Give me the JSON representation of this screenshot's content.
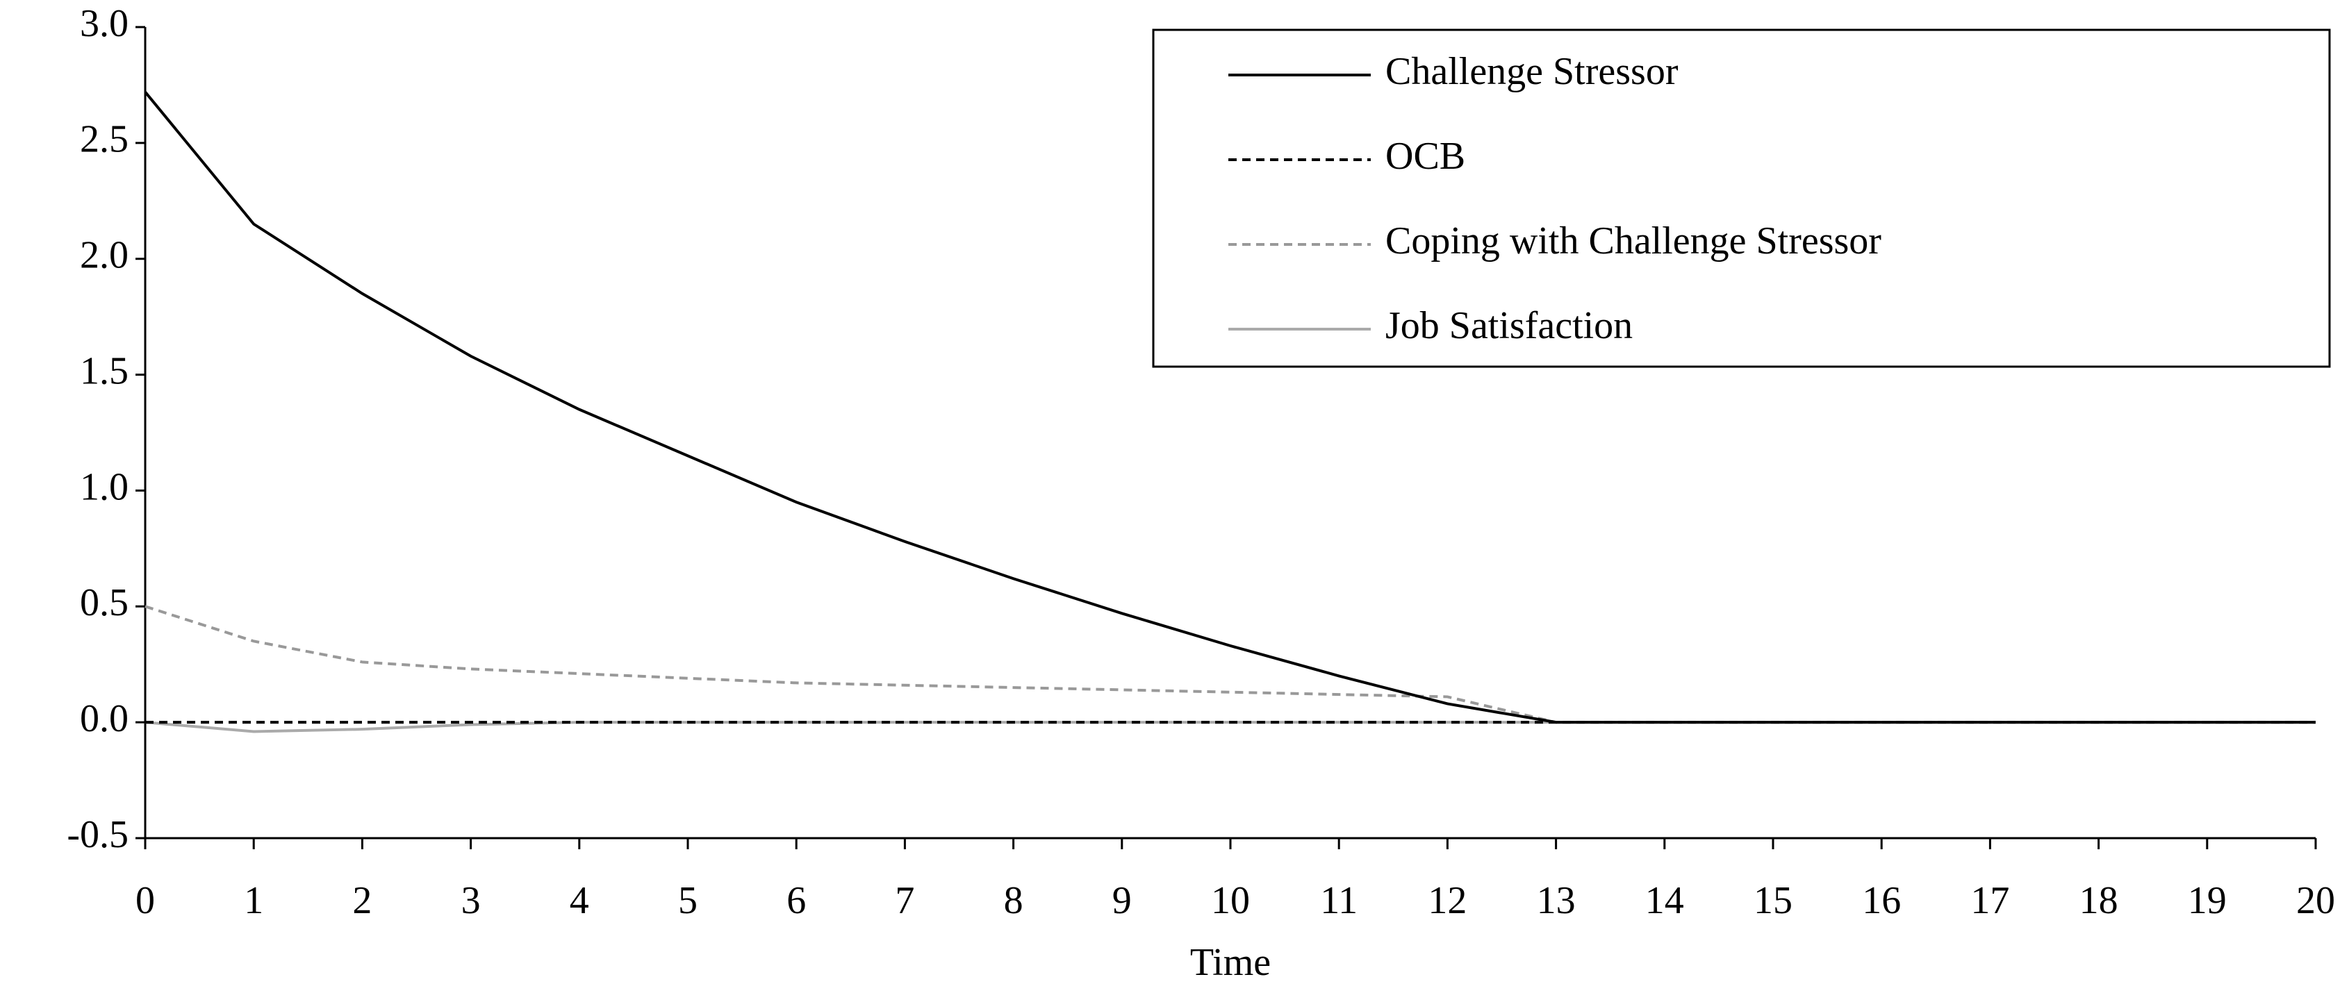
{
  "chart_data": {
    "type": "line",
    "xlabel": "Time",
    "x": [
      0,
      1,
      2,
      3,
      4,
      5,
      6,
      7,
      8,
      9,
      10,
      11,
      12,
      13,
      14,
      15,
      16,
      17,
      18,
      19,
      20
    ],
    "xlim": [
      0,
      20
    ],
    "xticks": [
      0,
      1,
      2,
      3,
      4,
      5,
      6,
      7,
      8,
      9,
      10,
      11,
      12,
      13,
      14,
      15,
      16,
      17,
      18,
      19,
      20
    ],
    "ylim": [
      -0.5,
      3
    ],
    "yticks": [
      {
        "value": -0.5,
        "label": "-0.5"
      },
      {
        "value": 0,
        "label": "0.0"
      },
      {
        "value": 0.5,
        "label": "0.5"
      },
      {
        "value": 1,
        "label": "1.0"
      },
      {
        "value": 1.5,
        "label": "1.5"
      },
      {
        "value": 2,
        "label": "2.0"
      },
      {
        "value": 2.5,
        "label": "2.5"
      },
      {
        "value": 3,
        "label": "3.0"
      }
    ],
    "legend": "upper right",
    "series": [
      {
        "name": "Challenge Stressor",
        "color": "#000000",
        "dashed": false,
        "values": [
          2.72,
          2.15,
          1.85,
          1.58,
          1.35,
          1.15,
          0.95,
          0.78,
          0.62,
          0.47,
          0.33,
          0.2,
          0.08,
          0,
          0,
          0,
          0,
          0,
          0,
          0,
          0
        ]
      },
      {
        "name": "OCB",
        "color": "#000000",
        "dashed": true,
        "values": [
          0,
          0,
          0,
          0,
          0,
          0,
          0,
          0,
          0,
          0,
          0,
          0,
          0,
          0,
          0,
          0,
          0,
          0,
          0,
          0,
          0
        ]
      },
      {
        "name": "Coping with Challenge Stressor",
        "color": "#999999",
        "dashed": true,
        "values": [
          0.5,
          0.35,
          0.26,
          0.23,
          0.21,
          0.19,
          0.17,
          0.16,
          0.15,
          0.14,
          0.13,
          0.12,
          0.11,
          0,
          0,
          0,
          0,
          0,
          0,
          0,
          0
        ]
      },
      {
        "name": "Job Satisfaction",
        "color": "#aaaaaa",
        "dashed": false,
        "values": [
          0,
          -0.04,
          -0.03,
          -0.01,
          0,
          0,
          0,
          0,
          0,
          0,
          0,
          0,
          0,
          0,
          0,
          0,
          0,
          0,
          0,
          0,
          0
        ]
      }
    ]
  }
}
